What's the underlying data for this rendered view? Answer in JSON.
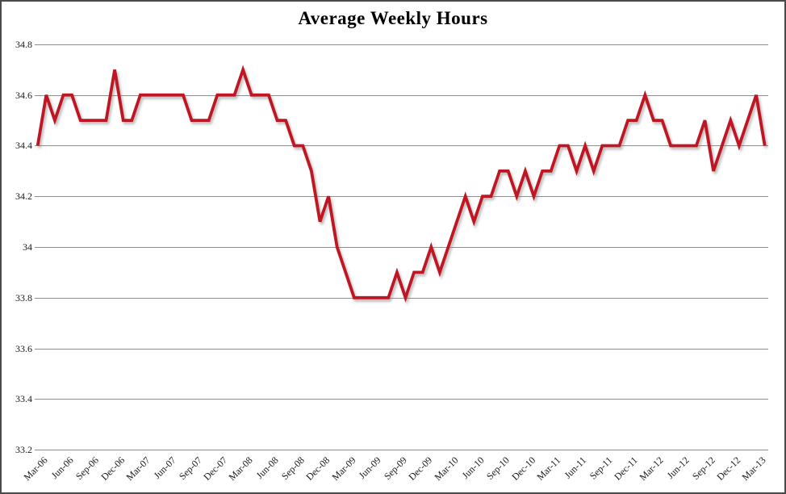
{
  "chart": {
    "title": "Average Weekly Hours"
  },
  "chart_data": {
    "type": "line",
    "title": "Average Weekly Hours",
    "xlabel": "",
    "ylabel": "",
    "ylim": [
      33.2,
      34.8
    ],
    "y_tick_step": 0.2,
    "grid": "horizontal-only",
    "legend": "none",
    "line_color": "#C01623",
    "gridline_color": "#8E8E8E",
    "y_tick_labels": [
      "34.8",
      "34.6",
      "34.4",
      "34.2",
      "34",
      "33.8",
      "33.6",
      "33.4",
      "33.2"
    ],
    "x_tick_labels": [
      "Mar-06",
      "Jun-06",
      "Sep-06",
      "Dec-06",
      "Mar-07",
      "Jun-07",
      "Sep-07",
      "Dec-07",
      "Mar-08",
      "Jun-08",
      "Sep-08",
      "Dec-08",
      "Mar-09",
      "Jun-09",
      "Sep-09",
      "Dec-09",
      "Mar-10",
      "Jun-10",
      "Sep-10",
      "Dec-10",
      "Mar-11",
      "Jun-11",
      "Sep-11",
      "Dec-11",
      "Mar-12",
      "Jun-12",
      "Sep-12",
      "Dec-12",
      "Mar-13"
    ],
    "x_tick_every": 3,
    "series": [
      {
        "name": "Average Weekly Hours",
        "x": [
          "Mar-06",
          "Apr-06",
          "May-06",
          "Jun-06",
          "Jul-06",
          "Aug-06",
          "Sep-06",
          "Oct-06",
          "Nov-06",
          "Dec-06",
          "Jan-07",
          "Feb-07",
          "Mar-07",
          "Apr-07",
          "May-07",
          "Jun-07",
          "Jul-07",
          "Aug-07",
          "Sep-07",
          "Oct-07",
          "Nov-07",
          "Dec-07",
          "Jan-08",
          "Feb-08",
          "Mar-08",
          "Apr-08",
          "May-08",
          "Jun-08",
          "Jul-08",
          "Aug-08",
          "Sep-08",
          "Oct-08",
          "Nov-08",
          "Dec-08",
          "Jan-09",
          "Feb-09",
          "Mar-09",
          "Apr-09",
          "May-09",
          "Jun-09",
          "Jul-09",
          "Aug-09",
          "Sep-09",
          "Oct-09",
          "Nov-09",
          "Dec-09",
          "Jan-10",
          "Feb-10",
          "Mar-10",
          "Apr-10",
          "May-10",
          "Jun-10",
          "Jul-10",
          "Aug-10",
          "Sep-10",
          "Oct-10",
          "Nov-10",
          "Dec-10",
          "Jan-11",
          "Feb-11",
          "Mar-11",
          "Apr-11",
          "May-11",
          "Jun-11",
          "Jul-11",
          "Aug-11",
          "Sep-11",
          "Oct-11",
          "Nov-11",
          "Dec-11",
          "Jan-12",
          "Feb-12",
          "Mar-12",
          "Apr-12",
          "May-12",
          "Jun-12",
          "Jul-12",
          "Aug-12",
          "Sep-12",
          "Oct-12",
          "Nov-12",
          "Dec-12",
          "Jan-13",
          "Feb-13",
          "Mar-13",
          "Apr-13"
        ],
        "values": [
          34.4,
          34.6,
          34.5,
          34.6,
          34.6,
          34.5,
          34.5,
          34.5,
          34.5,
          34.7,
          34.5,
          34.5,
          34.6,
          34.6,
          34.6,
          34.6,
          34.6,
          34.6,
          34.5,
          34.5,
          34.5,
          34.6,
          34.6,
          34.6,
          34.7,
          34.6,
          34.6,
          34.6,
          34.5,
          34.5,
          34.4,
          34.4,
          34.3,
          34.1,
          34.2,
          34.0,
          33.9,
          33.8,
          33.8,
          33.8,
          33.8,
          33.8,
          33.9,
          33.8,
          33.9,
          33.9,
          34.0,
          33.9,
          34.0,
          34.1,
          34.2,
          34.1,
          34.2,
          34.2,
          34.3,
          34.3,
          34.2,
          34.3,
          34.2,
          34.3,
          34.3,
          34.4,
          34.4,
          34.3,
          34.4,
          34.3,
          34.4,
          34.4,
          34.4,
          34.5,
          34.5,
          34.6,
          34.5,
          34.5,
          34.4,
          34.4,
          34.4,
          34.4,
          34.5,
          34.3,
          34.4,
          34.5,
          34.4,
          34.5,
          34.6,
          34.4
        ]
      }
    ]
  }
}
